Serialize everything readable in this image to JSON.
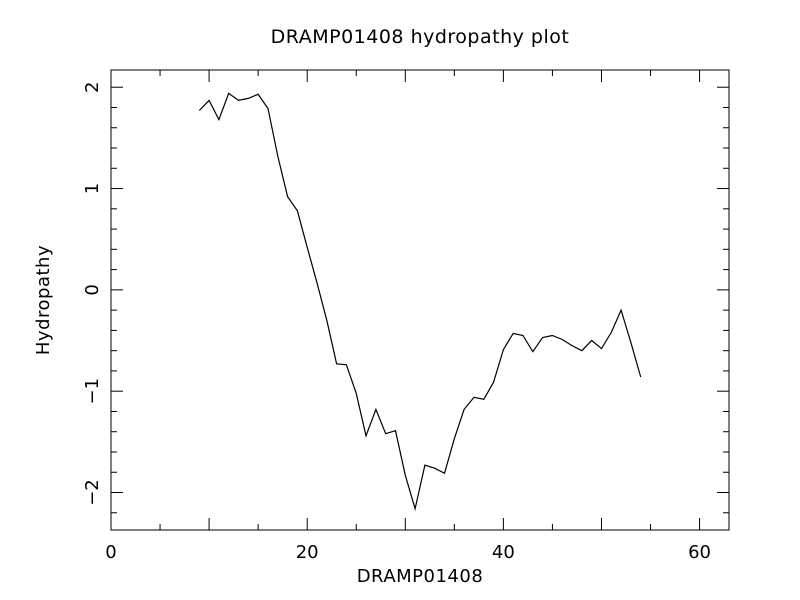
{
  "chart_data": {
    "type": "line",
    "title": "DRAMP01408 hydropathy plot",
    "xlabel": "DRAMP01408",
    "ylabel": "Hydropathy",
    "xlim": [
      0,
      63
    ],
    "ylim": [
      -2.37,
      2.17
    ],
    "xticks": [
      0,
      20,
      40,
      60
    ],
    "yticks": [
      2,
      1,
      0,
      -1,
      -2
    ],
    "xtick_labels": [
      "0",
      "20",
      "40",
      "60"
    ],
    "ytick_labels": [
      "2",
      "1",
      "0",
      "−1",
      "−2"
    ],
    "grid": false,
    "line_color": "#000000",
    "series": [
      {
        "x": [
          9,
          10,
          11,
          12,
          13,
          14,
          15,
          16,
          17,
          18,
          19,
          20,
          21,
          22,
          23,
          24,
          25,
          26,
          27,
          28,
          29,
          30,
          31,
          32,
          33,
          34,
          35,
          36,
          37,
          38,
          39,
          40,
          41,
          42,
          43,
          44,
          45,
          46,
          47,
          48,
          49,
          50,
          51,
          52,
          53,
          54
        ],
        "y": [
          1.77,
          1.87,
          1.68,
          1.94,
          1.87,
          1.89,
          1.93,
          1.79,
          1.32,
          0.92,
          0.78,
          0.42,
          0.07,
          -0.3,
          -0.73,
          -0.74,
          -1.02,
          -1.44,
          -1.18,
          -1.42,
          -1.39,
          -1.83,
          -2.16,
          -1.73,
          -1.76,
          -1.81,
          -1.47,
          -1.18,
          -1.06,
          -1.08,
          -0.91,
          -0.59,
          -0.43,
          -0.45,
          -0.61,
          -0.47,
          -0.45,
          -0.49,
          -0.55,
          -0.6,
          -0.5,
          -0.58,
          -0.42,
          -0.2,
          -0.52,
          -0.86
        ]
      }
    ]
  }
}
